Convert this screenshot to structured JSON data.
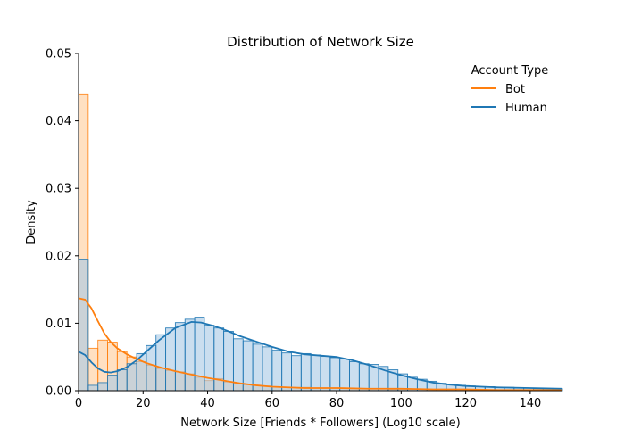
{
  "chart_data": {
    "type": "histogram",
    "title": "Distribution of Network Size",
    "xlabel": "Network Size [Friends * Followers] (Log10 scale)",
    "ylabel": "Density",
    "xlim": [
      0,
      150
    ],
    "ylim": [
      0,
      0.05
    ],
    "xticks": [
      "0",
      "20",
      "40",
      "60",
      "80",
      "100",
      "120",
      "140"
    ],
    "yticks": [
      "0.00",
      "0.01",
      "0.02",
      "0.03",
      "0.04",
      "0.05"
    ],
    "bin_width": 3,
    "legend": {
      "title": "Account Type",
      "position": "top-right"
    },
    "series": [
      {
        "name": "Bot",
        "color": "#ff7f0e",
        "fill": "#ffcc99",
        "bin_starts": [
          0,
          3,
          6,
          9,
          12,
          15,
          18,
          21,
          24,
          27,
          30,
          33,
          36,
          39,
          42,
          45,
          48,
          51,
          54,
          57,
          60,
          63,
          66,
          69,
          72,
          75,
          78,
          81,
          84,
          87,
          90,
          93,
          96,
          99,
          102,
          105,
          108,
          111,
          114,
          117,
          120,
          123,
          126,
          129,
          132,
          135,
          138,
          141,
          144,
          147
        ],
        "density": [
          0.044,
          0.0063,
          0.0075,
          0.0072,
          0.0058,
          0.005,
          0.0043,
          0.0038,
          0.0033,
          0.003,
          0.0028,
          0.0025,
          0.002,
          0.0015,
          0.0018,
          0.0013,
          0.0011,
          0.0009,
          0.0008,
          0.0007,
          0.0006,
          0.0005,
          0.0005,
          0.0005,
          0.0004,
          0.0004,
          0.0004,
          0.0004,
          0.0003,
          0.0003,
          0.0003,
          0.0003,
          0.0002,
          0.0002,
          0.0002,
          0.0002,
          0.0002,
          0.0002,
          0.0002,
          0.0002,
          0.0002,
          0.0002,
          0.0001,
          0.0001,
          0.0001,
          0.0001,
          0.0001,
          0.0001,
          0.0001,
          0.0001
        ],
        "kde_x": [
          0,
          2,
          4,
          6,
          8,
          10,
          12,
          15,
          18,
          21,
          25,
          30,
          35,
          40,
          45,
          50,
          55,
          60,
          65,
          70,
          80,
          90,
          100,
          110,
          120,
          130,
          140,
          150
        ],
        "kde_y": [
          0.0137,
          0.0135,
          0.0122,
          0.0103,
          0.0085,
          0.0072,
          0.0063,
          0.0054,
          0.0047,
          0.0041,
          0.0035,
          0.0029,
          0.0024,
          0.0019,
          0.0015,
          0.0011,
          0.0008,
          0.0006,
          0.0005,
          0.0004,
          0.0004,
          0.0003,
          0.0003,
          0.0002,
          0.0002,
          0.0001,
          0.0001,
          0.0001
        ]
      },
      {
        "name": "Human",
        "color": "#1f77b4",
        "fill": "#a6c8e4",
        "bin_starts": [
          0,
          3,
          6,
          9,
          12,
          15,
          18,
          21,
          24,
          27,
          30,
          33,
          36,
          39,
          42,
          45,
          48,
          51,
          54,
          57,
          60,
          63,
          66,
          69,
          72,
          75,
          78,
          81,
          84,
          87,
          90,
          93,
          96,
          99,
          102,
          105,
          108,
          111,
          114,
          117,
          120,
          123,
          126,
          129,
          132,
          135,
          138,
          141,
          144,
          147
        ],
        "density": [
          0.0195,
          0.0008,
          0.0012,
          0.0023,
          0.0031,
          0.004,
          0.0055,
          0.0067,
          0.0083,
          0.0093,
          0.0101,
          0.0106,
          0.0109,
          0.0097,
          0.0093,
          0.0088,
          0.0077,
          0.0074,
          0.0069,
          0.0065,
          0.006,
          0.0056,
          0.0052,
          0.0055,
          0.0053,
          0.0051,
          0.0049,
          0.0047,
          0.0043,
          0.004,
          0.0039,
          0.0036,
          0.0031,
          0.0025,
          0.002,
          0.0017,
          0.0014,
          0.0011,
          0.0009,
          0.0008,
          0.0007,
          0.0006,
          0.0006,
          0.0005,
          0.0005,
          0.0004,
          0.0004,
          0.0003,
          0.0003,
          0.0003
        ],
        "kde_x": [
          0,
          2,
          4,
          6,
          8,
          10,
          12,
          15,
          18,
          21,
          25,
          30,
          35,
          38,
          42,
          46,
          50,
          55,
          60,
          65,
          70,
          75,
          80,
          85,
          90,
          95,
          100,
          105,
          110,
          115,
          120,
          125,
          130,
          140,
          150
        ],
        "kde_y": [
          0.0058,
          0.0053,
          0.0042,
          0.0033,
          0.0028,
          0.0027,
          0.0029,
          0.0035,
          0.0045,
          0.0058,
          0.0075,
          0.0093,
          0.0102,
          0.0101,
          0.0096,
          0.0089,
          0.0081,
          0.0073,
          0.0065,
          0.0058,
          0.0054,
          0.0052,
          0.005,
          0.0045,
          0.0038,
          0.003,
          0.0023,
          0.0017,
          0.0012,
          0.0009,
          0.0007,
          0.0006,
          0.0005,
          0.0004,
          0.0003
        ]
      }
    ]
  }
}
